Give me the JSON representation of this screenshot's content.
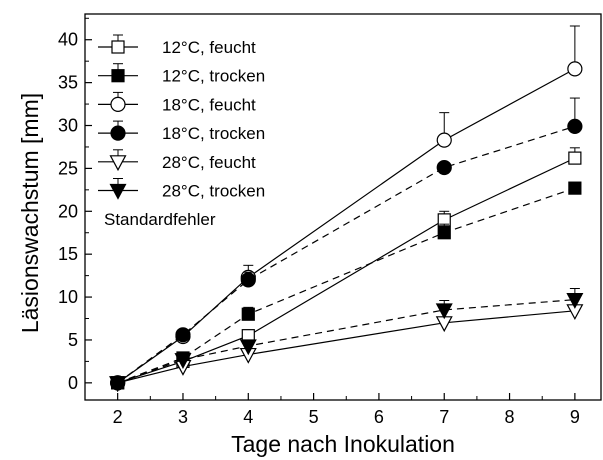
{
  "chart_data": {
    "type": "line",
    "xlabel": "Tage nach Inokulation",
    "ylabel": "Läsionswachstum [mm]",
    "xlim": [
      1.5,
      9.4
    ],
    "ylim": [
      -2,
      43
    ],
    "xticks": [
      2,
      3,
      4,
      5,
      6,
      7,
      8,
      9
    ],
    "yticks": [
      0,
      5,
      10,
      15,
      20,
      25,
      30,
      35,
      40
    ],
    "grid": false,
    "legend_position": "top-left",
    "legend_note": "Standardfehler",
    "series": [
      {
        "name": "12°C, feucht",
        "marker": "square",
        "filled": false,
        "dash": "solid",
        "x": [
          2,
          3,
          4,
          7,
          9
        ],
        "y": [
          0,
          2.5,
          5.5,
          19.0,
          26.2
        ],
        "err": [
          0,
          0.3,
          0.6,
          1.0,
          1.2
        ]
      },
      {
        "name": "12°C, trocken",
        "marker": "square",
        "filled": true,
        "dash": "dashed",
        "x": [
          2,
          3,
          4,
          7,
          9
        ],
        "y": [
          0,
          2.9,
          8.0,
          17.5,
          22.7
        ],
        "err": [
          0,
          0.3,
          0.8,
          1.0,
          0
        ]
      },
      {
        "name": "18°C, feucht",
        "marker": "circle",
        "filled": false,
        "dash": "solid",
        "x": [
          2,
          3,
          4,
          7,
          9
        ],
        "y": [
          0,
          5.4,
          12.3,
          28.3,
          36.6
        ],
        "err": [
          0,
          0.4,
          1.4,
          3.2,
          5.0
        ]
      },
      {
        "name": "18°C, trocken",
        "marker": "circle",
        "filled": true,
        "dash": "dashed",
        "x": [
          2,
          3,
          4,
          7,
          9
        ],
        "y": [
          0,
          5.6,
          12.0,
          25.1,
          29.9
        ],
        "err": [
          0,
          0.3,
          0.9,
          0,
          3.3
        ]
      },
      {
        "name": "28°C, feucht",
        "marker": "triangle-down",
        "filled": false,
        "dash": "solid",
        "x": [
          2,
          3,
          4,
          7,
          9
        ],
        "y": [
          0,
          1.9,
          3.3,
          7.0,
          8.4
        ],
        "err": [
          0,
          0.3,
          0.4,
          0.6,
          0.6
        ]
      },
      {
        "name": "28°C, trocken",
        "marker": "triangle-down",
        "filled": true,
        "dash": "dashed",
        "x": [
          2,
          3,
          4,
          7,
          9
        ],
        "y": [
          0,
          2.7,
          4.3,
          8.5,
          9.7
        ],
        "err": [
          0,
          0.3,
          0.4,
          1.1,
          1.3
        ]
      }
    ]
  }
}
